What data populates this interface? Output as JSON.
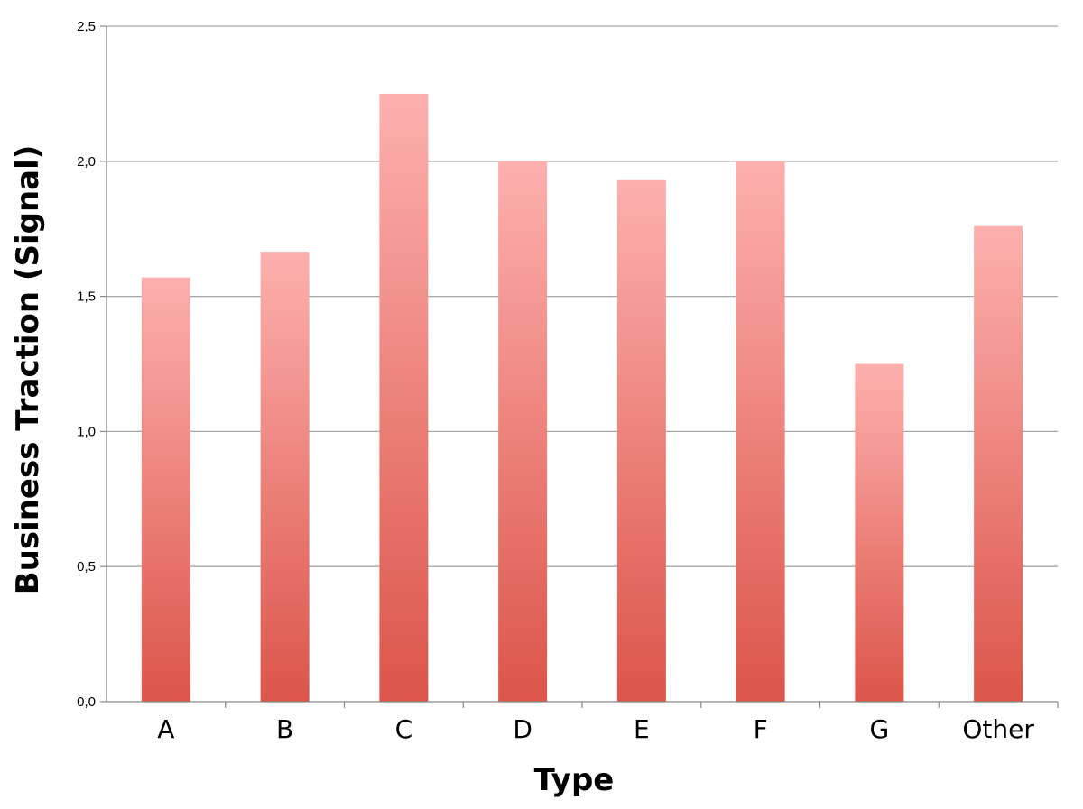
{
  "chart_data": {
    "type": "bar",
    "categories": [
      "A",
      "B",
      "C",
      "D",
      "E",
      "F",
      "G",
      "Other"
    ],
    "values": [
      1.57,
      1.665,
      2.25,
      2.0,
      1.93,
      2.0,
      1.25,
      1.76
    ],
    "xlabel": "Type",
    "ylabel": "Business Traction (Signal)",
    "ylim": [
      0,
      2.5
    ],
    "yticks": [
      "0,0",
      "0,5",
      "1,0",
      "1,5",
      "2,0",
      "2,5"
    ],
    "grid": true,
    "legend": "none",
    "colors": {
      "bar_top": "#fdb0ae",
      "bar_bottom": "#db5549",
      "grid": "#a6a6a6",
      "axis": "#888888"
    }
  }
}
